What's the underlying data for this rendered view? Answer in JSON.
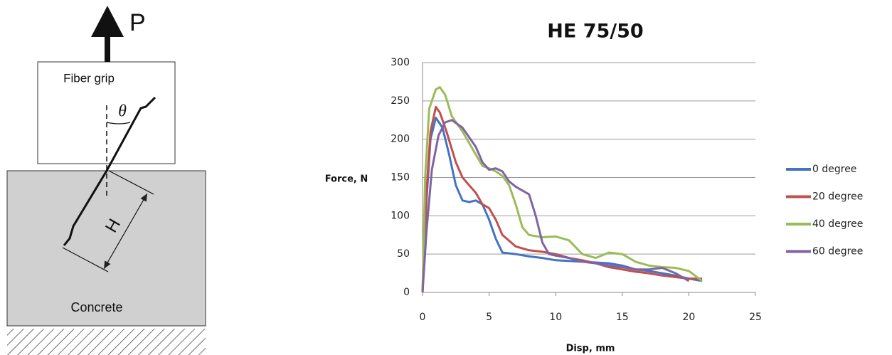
{
  "diagram": {
    "load": "P",
    "grip": "Fiber grip",
    "angle": "θ",
    "embed": "H",
    "matrix": "Concrete"
  },
  "chart_data": {
    "type": "line",
    "title": "HE 75/50",
    "x_label": "Disp, mm",
    "y_label": "Force, N",
    "xlim": [
      0,
      25
    ],
    "xticks": [
      0,
      5,
      10,
      15,
      20,
      25
    ],
    "ylim": [
      0,
      300
    ],
    "yticks": [
      0,
      50,
      100,
      150,
      200,
      250,
      300
    ],
    "grid": true,
    "legend": "right",
    "series": [
      {
        "name": "0 degree",
        "color": "#4472c4",
        "x": [
          0,
          0.3,
          0.6,
          1,
          1.5,
          2,
          2.5,
          3,
          3.5,
          4,
          4.5,
          5,
          5.5,
          6,
          7,
          8,
          9,
          10,
          12,
          14,
          15,
          16,
          17,
          18,
          19,
          20,
          21
        ],
        "values": [
          0,
          120,
          200,
          228,
          215,
          180,
          140,
          120,
          118,
          120,
          115,
          95,
          70,
          52,
          50,
          47,
          45,
          42,
          40,
          38,
          35,
          30,
          28,
          25,
          22,
          18,
          15
        ]
      },
      {
        "name": "20 degree",
        "color": "#c0504d",
        "x": [
          0,
          0.3,
          0.6,
          1,
          1.3,
          1.8,
          2.5,
          3,
          3.5,
          4,
          4.5,
          5,
          5.5,
          6,
          7,
          8,
          9,
          10,
          11,
          12,
          13,
          14,
          15,
          16,
          17,
          18,
          19,
          20,
          21
        ],
        "values": [
          0,
          130,
          210,
          242,
          235,
          210,
          170,
          150,
          140,
          130,
          115,
          110,
          95,
          75,
          60,
          55,
          53,
          50,
          45,
          42,
          38,
          33,
          30,
          27,
          25,
          22,
          20,
          18,
          18
        ]
      },
      {
        "name": "40 degree",
        "color": "#9bbb59",
        "x": [
          0,
          0.2,
          0.5,
          1,
          1.3,
          1.7,
          2.2,
          3,
          4,
          4.5,
          5,
          5.5,
          6,
          6.5,
          7,
          7.5,
          8,
          9,
          10,
          11,
          12,
          13,
          14,
          15,
          16,
          17,
          18,
          19,
          20,
          21
        ],
        "values": [
          0,
          150,
          240,
          265,
          268,
          258,
          230,
          210,
          180,
          165,
          162,
          158,
          152,
          140,
          115,
          85,
          75,
          72,
          73,
          68,
          50,
          45,
          52,
          50,
          40,
          35,
          33,
          32,
          28,
          15
        ]
      },
      {
        "name": "60 degree",
        "color": "#8064a2",
        "x": [
          0,
          0.3,
          0.7,
          1.2,
          1.7,
          2.2,
          3,
          4,
          4.5,
          5,
          5.5,
          6,
          6.5,
          7,
          8,
          8.5,
          9,
          9.5,
          10,
          11,
          12,
          13,
          14,
          15,
          16,
          17,
          18,
          19,
          20
        ],
        "values": [
          0,
          80,
          160,
          205,
          222,
          225,
          215,
          190,
          170,
          160,
          162,
          158,
          145,
          138,
          128,
          100,
          65,
          50,
          48,
          45,
          40,
          38,
          35,
          33,
          30,
          30,
          32,
          25,
          15
        ]
      }
    ]
  }
}
